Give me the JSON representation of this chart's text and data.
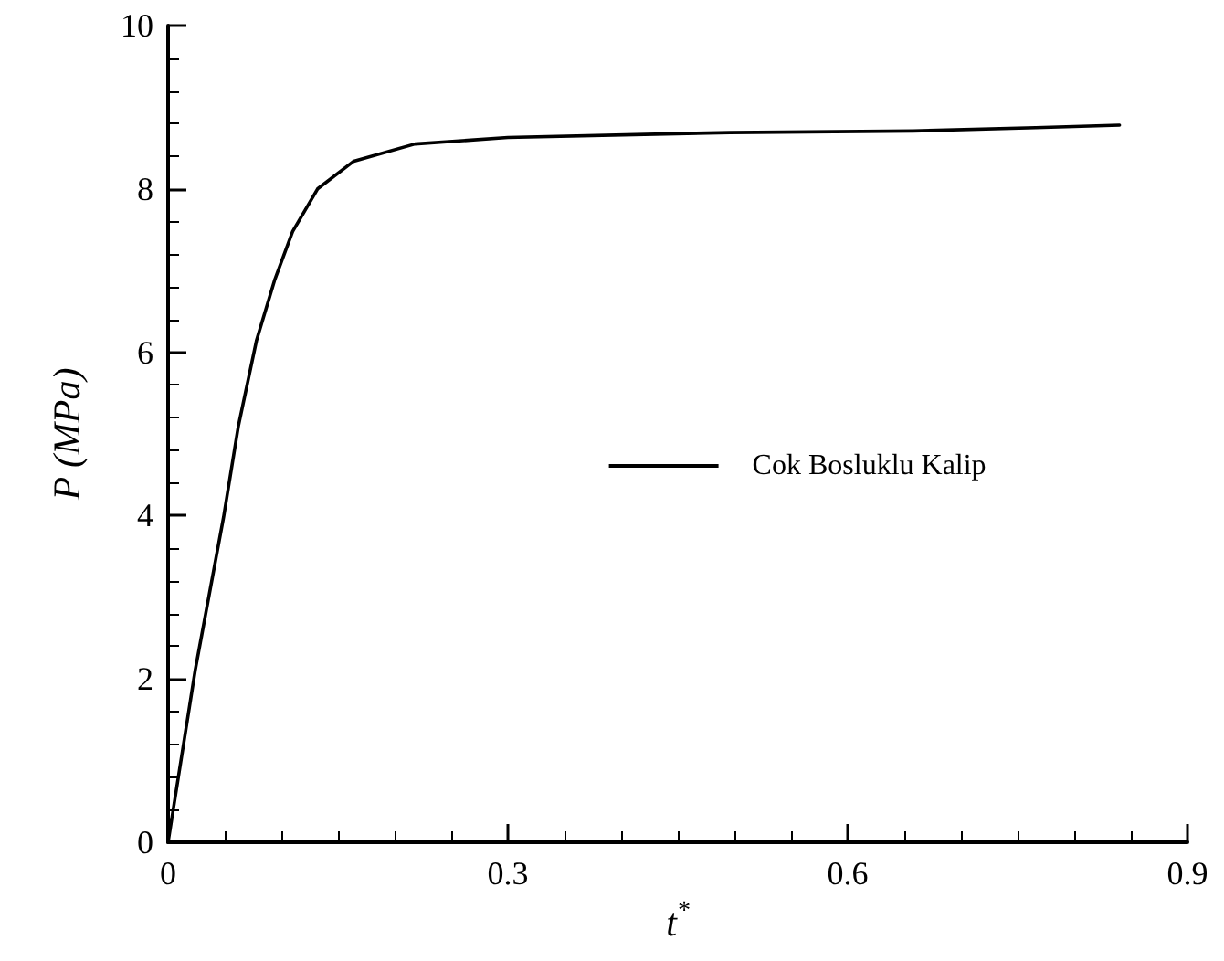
{
  "chart_data": {
    "type": "line",
    "xlabel": "t$^{*}$",
    "ylabel": "P (MPa)",
    "xlim": [
      0,
      0.9
    ],
    "xticks": [
      0,
      0.3,
      0.6,
      0.9
    ],
    "ylim": [
      0,
      10
    ],
    "yticks": [
      0,
      2,
      4,
      6,
      8,
      10
    ],
    "grid": false,
    "legend": "right",
    "marker": "none",
    "line_style": "solid",
    "series": [
      {
        "name": "Cok Bosluklu Kalip",
        "color": "#000000",
        "x": [
          0,
          0.024,
          0.049,
          0.062,
          0.078,
          0.094,
          0.11,
          0.132,
          0.164,
          0.218,
          0.3,
          0.43,
          0.496,
          0.658,
          0.766,
          0.84
        ],
        "values": [
          0,
          2.11,
          3.98,
          5.09,
          6.14,
          6.88,
          7.48,
          8.0,
          8.34,
          8.55,
          8.63,
          8.67,
          8.69,
          8.71,
          8.75,
          8.78
        ]
      }
    ]
  }
}
